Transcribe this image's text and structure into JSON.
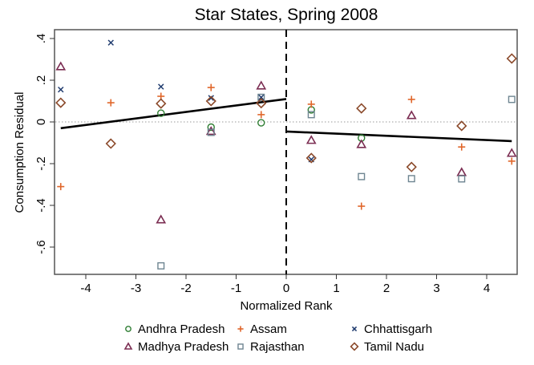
{
  "chart_data": {
    "type": "scatter",
    "title": "Star States, Spring 2008",
    "xlabel": "Normalized Rank",
    "ylabel": "Consumption Residual",
    "xlim": [
      -4.8,
      4.7
    ],
    "ylim": [
      -0.73,
      0.44
    ],
    "xticks": [
      -4,
      -3,
      -2,
      -1,
      0,
      1,
      2,
      3,
      4
    ],
    "xtick_labels": [
      "-4",
      "-3",
      "-2",
      "-1",
      "0",
      "1",
      "2",
      "3",
      "4"
    ],
    "yticks": [
      0.4,
      0.2,
      0,
      -0.2,
      -0.4,
      -0.6
    ],
    "ytick_labels": [
      ".4",
      ".2",
      "0",
      "-.2",
      "-.4",
      "-.6"
    ],
    "grid": false,
    "reference_lines": {
      "vertical_dashed_x": 0,
      "horizontal_dotted_y": 0
    },
    "legend_position": "bottom",
    "series": [
      {
        "name": "Andhra Pradesh",
        "marker": "circle",
        "color": "#2e7d32",
        "points": [
          [
            -2.5,
            0.042
          ],
          [
            -1.5,
            -0.025
          ],
          [
            -0.5,
            -0.004
          ],
          [
            0.5,
            0.058
          ],
          [
            1.5,
            -0.077
          ]
        ]
      },
      {
        "name": "Assam",
        "marker": "plus",
        "color": "#e0662a",
        "points": [
          [
            -4.5,
            -0.31
          ],
          [
            -3.5,
            0.092
          ],
          [
            -2.5,
            0.123
          ],
          [
            -1.5,
            0.165
          ],
          [
            -0.5,
            0.035
          ],
          [
            0.5,
            0.085
          ],
          [
            1.5,
            -0.404
          ],
          [
            2.5,
            0.108
          ],
          [
            3.5,
            -0.12
          ],
          [
            4.5,
            -0.188
          ]
        ]
      },
      {
        "name": "Chhattisgarh",
        "marker": "x",
        "color": "#1f3b6e",
        "points": [
          [
            -4.5,
            0.155
          ],
          [
            -3.5,
            0.38
          ],
          [
            -2.5,
            0.169
          ],
          [
            -1.5,
            0.115
          ],
          [
            -0.5,
            0.118
          ],
          [
            0.5,
            -0.18
          ]
        ]
      },
      {
        "name": "Madhya Pradesh",
        "marker": "triangle",
        "color": "#7b2d52",
        "points": [
          [
            -4.5,
            0.265
          ],
          [
            -2.5,
            -0.469
          ],
          [
            -1.5,
            -0.045
          ],
          [
            -0.5,
            0.173
          ],
          [
            0.5,
            -0.088
          ],
          [
            1.5,
            -0.108
          ],
          [
            2.5,
            0.031
          ],
          [
            3.5,
            -0.242
          ],
          [
            4.5,
            -0.15
          ]
        ]
      },
      {
        "name": "Rajasthan",
        "marker": "square",
        "color": "#6e8591",
        "points": [
          [
            -2.5,
            -0.69
          ],
          [
            -1.5,
            -0.05
          ],
          [
            -0.5,
            0.118
          ],
          [
            0.5,
            0.035
          ],
          [
            1.5,
            -0.262
          ],
          [
            2.5,
            -0.272
          ],
          [
            3.5,
            -0.273
          ],
          [
            4.5,
            0.108
          ]
        ]
      },
      {
        "name": "Tamil Nadu",
        "marker": "diamond",
        "color": "#8b4a2b",
        "points": [
          [
            -4.5,
            0.092
          ],
          [
            -3.5,
            -0.104
          ],
          [
            -2.5,
            0.088
          ],
          [
            -1.5,
            0.1
          ],
          [
            -0.5,
            0.09
          ],
          [
            0.5,
            -0.173
          ],
          [
            1.5,
            0.065
          ],
          [
            2.5,
            -0.216
          ],
          [
            3.5,
            -0.019
          ],
          [
            4.5,
            0.304
          ]
        ]
      }
    ],
    "fit_lines": [
      {
        "name": "left-fit",
        "from": [
          -4.5,
          -0.03
        ],
        "to": [
          0,
          0.11
        ]
      },
      {
        "name": "right-fit",
        "from": [
          0,
          -0.046
        ],
        "to": [
          4.5,
          -0.092
        ]
      }
    ]
  }
}
